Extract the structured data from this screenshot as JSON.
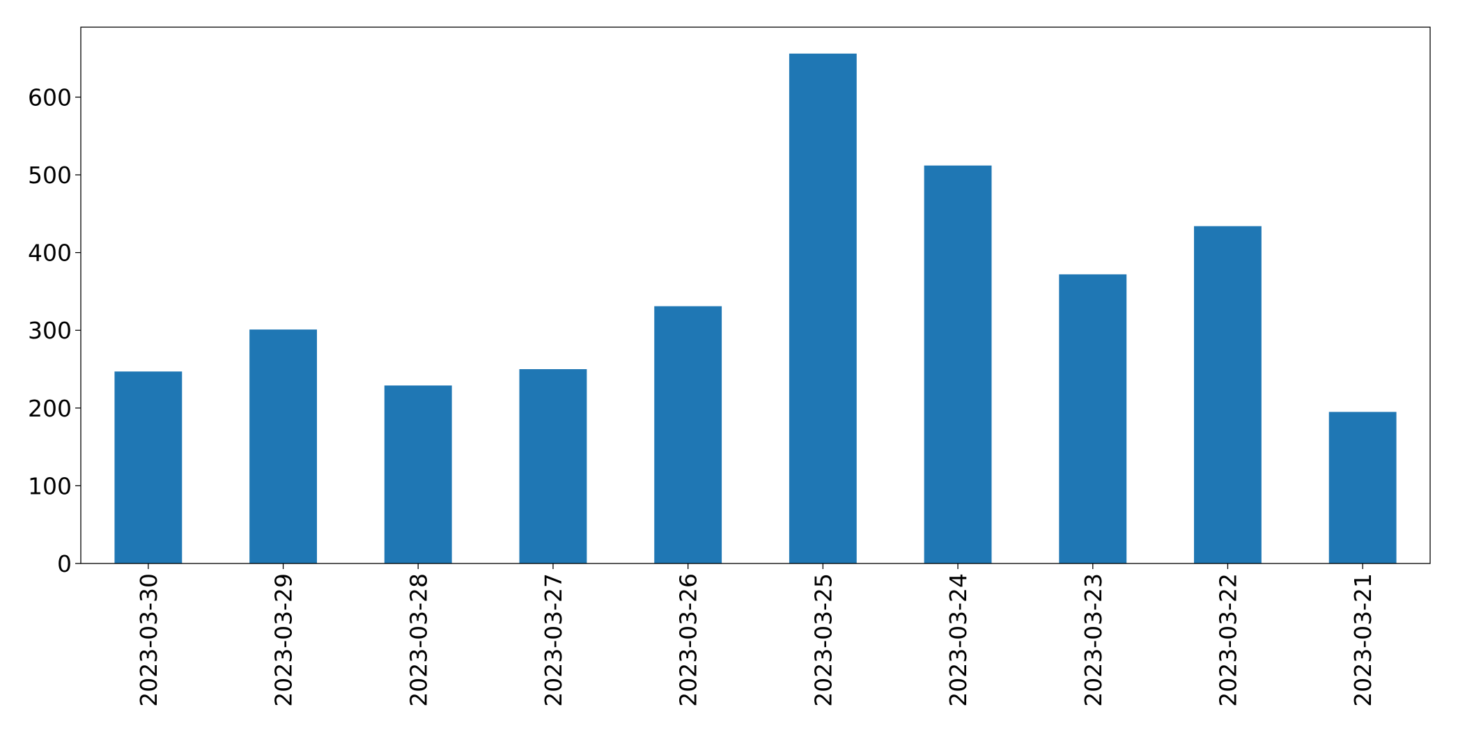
{
  "chart_data": {
    "type": "bar",
    "categories": [
      "2023-03-30",
      "2023-03-29",
      "2023-03-28",
      "2023-03-27",
      "2023-03-26",
      "2023-03-25",
      "2023-03-24",
      "2023-03-23",
      "2023-03-22",
      "2023-03-21"
    ],
    "values": [
      247,
      301,
      229,
      250,
      331,
      656,
      512,
      372,
      434,
      195
    ],
    "color": "#1f77b4",
    "ylim": [
      0,
      690
    ],
    "yticks": [
      0,
      100,
      200,
      300,
      400,
      500,
      600
    ],
    "grid": false
  }
}
